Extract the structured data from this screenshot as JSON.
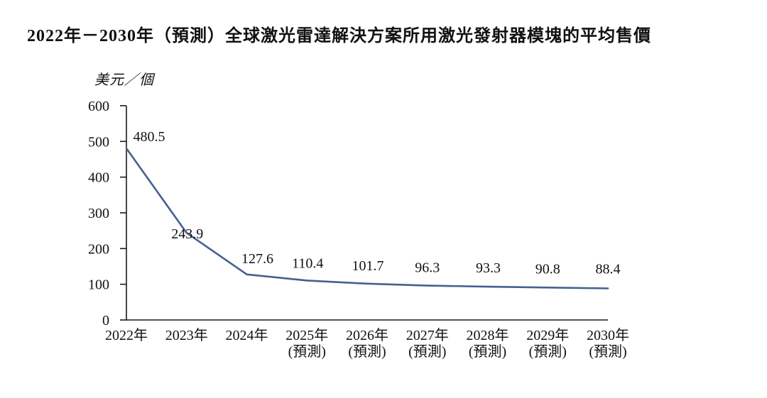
{
  "chart_data": {
    "type": "line",
    "title": "2022年－2030年（預測）全球激光雷達解決方案所用激光發射器模塊的平均售價",
    "ylabel": "美元／個",
    "xlabel": "",
    "categories": [
      [
        "2022年"
      ],
      [
        "2023年"
      ],
      [
        "2024年"
      ],
      [
        "2025年",
        "(預測)"
      ],
      [
        "2026年",
        "(預測)"
      ],
      [
        "2027年",
        "(預測)"
      ],
      [
        "2028年",
        "(預測)"
      ],
      [
        "2029年",
        "(預測)"
      ],
      [
        "2030年",
        "(預測)"
      ]
    ],
    "values": [
      480.5,
      243.9,
      127.6,
      110.4,
      101.7,
      96.3,
      93.3,
      90.8,
      88.4
    ],
    "data_labels": [
      "480.5",
      "243.9",
      "127.6",
      "110.4",
      "101.7",
      "96.3",
      "93.3",
      "90.8",
      "88.4"
    ],
    "y_ticks": [
      0,
      100,
      200,
      300,
      400,
      500,
      600
    ],
    "ylim": [
      0,
      600
    ],
    "grid": false,
    "legend": "none",
    "colors": {
      "line": "#44618e",
      "axis": "#1a1a1a",
      "text": "#111111",
      "background": "#ffffff"
    }
  }
}
